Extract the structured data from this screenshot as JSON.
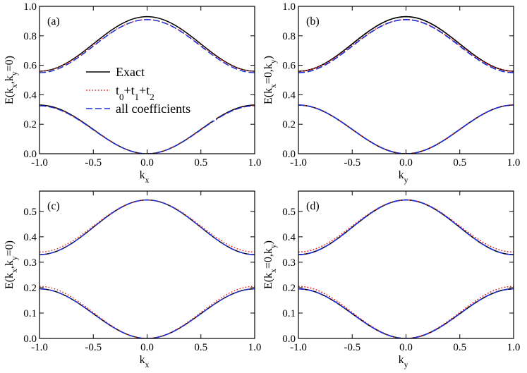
{
  "chart_data": [
    {
      "type": "line",
      "panel_label": "(a)",
      "xlabel_main": "k",
      "xlabel_sub": "x",
      "ylabel_parts": [
        "E(k",
        "x",
        ",k",
        "y",
        "=0)"
      ],
      "xlim": [
        -1.0,
        1.0
      ],
      "ylim": [
        0.0,
        1.0
      ],
      "xticks": [
        "-1.0",
        "-0.5",
        "0.0",
        "0.5",
        "1.0"
      ],
      "yticks": [
        "0.0",
        "0.2",
        "0.4",
        "0.6",
        "0.8",
        "1.0"
      ],
      "ytick_values": [
        0,
        0.2,
        0.4,
        0.6,
        0.8,
        1.0
      ],
      "has_legend": true,
      "series": [
        {
          "name": "Exact",
          "style": "solid",
          "color": "#000000",
          "curves": [
            {
              "form": "cos",
              "center": 0.745,
              "amp": 0.185
            },
            {
              "form": "sin2",
              "base": 0.0,
              "amp": 0.33
            }
          ]
        },
        {
          "name": "t0+t1+t2",
          "style": "dotted",
          "color": "#e8211a",
          "curves": [
            {
              "form": "cos",
              "center": 0.735,
              "amp": 0.175
            },
            {
              "form": "sin2",
              "base": 0.0,
              "amp": 0.325
            }
          ]
        },
        {
          "name": "all coefficients",
          "style": "dashed",
          "color": "#1f2fd6",
          "curves": [
            {
              "form": "cos",
              "center": 0.73,
              "amp": 0.18
            },
            {
              "form": "sin2",
              "base": 0.0,
              "amp": 0.325
            }
          ]
        }
      ]
    },
    {
      "type": "line",
      "panel_label": "(b)",
      "xlabel_main": "k",
      "xlabel_sub": "y",
      "ylabel_parts": [
        "E(k",
        "x",
        "=0,k",
        "y",
        ")"
      ],
      "xlim": [
        -1.0,
        1.0
      ],
      "ylim": [
        0.0,
        1.0
      ],
      "xticks": [
        "-1.0",
        "-0.5",
        "0.0",
        "0.5",
        "1.0"
      ],
      "yticks": [
        "0.0",
        "0.2",
        "0.4",
        "0.6",
        "0.8",
        "1.0"
      ],
      "ytick_values": [
        0,
        0.2,
        0.4,
        0.6,
        0.8,
        1.0
      ],
      "has_legend": false,
      "series": [
        {
          "name": "Exact",
          "style": "solid",
          "color": "#000000",
          "curves": [
            {
              "form": "cos",
              "center": 0.745,
              "amp": 0.185
            },
            {
              "form": "cos",
              "center": 0.165,
              "amp": -0.165
            },
            {
              "form": "cosd",
              "center": 0.745,
              "amp": 0.185
            },
            {
              "form": "cosd",
              "center": 0.165,
              "amp": -0.165
            }
          ]
        },
        {
          "name": "t0+t1+t2",
          "style": "dotted",
          "color": "#e8211a",
          "curves": [
            {
              "form": "cos",
              "center": 0.735,
              "amp": 0.175
            },
            {
              "form": "cos",
              "center": 0.165,
              "amp": -0.165
            },
            {
              "form": "cosd",
              "center": 0.735,
              "amp": 0.175
            },
            {
              "form": "cosd",
              "center": 0.165,
              "amp": -0.165
            }
          ]
        },
        {
          "name": "all coefficients",
          "style": "dashed",
          "color": "#1f2fd6",
          "curves": [
            {
              "form": "cos",
              "center": 0.73,
              "amp": 0.18
            },
            {
              "form": "cos",
              "center": 0.165,
              "amp": -0.165
            },
            {
              "form": "cosd",
              "center": 0.73,
              "amp": 0.18
            },
            {
              "form": "cosd",
              "center": 0.165,
              "amp": -0.165
            }
          ]
        }
      ]
    },
    {
      "type": "line",
      "panel_label": "(c)",
      "xlabel_main": "k",
      "xlabel_sub": "x",
      "ylabel_parts": [
        "E(k",
        "x",
        ",k",
        "y",
        "=0)"
      ],
      "xlim": [
        -1.0,
        1.0
      ],
      "ylim": [
        0.0,
        0.58
      ],
      "xticks": [
        "-1.0",
        "-0.5",
        "0.0",
        "0.5",
        "1.0"
      ],
      "yticks": [
        "0.0",
        "0.1",
        "0.2",
        "0.3",
        "0.4",
        "0.5"
      ],
      "ytick_values": [
        0,
        0.1,
        0.2,
        0.3,
        0.4,
        0.5
      ],
      "has_legend": false,
      "series": [
        {
          "name": "Exact",
          "style": "solid",
          "color": "#000000",
          "curves": [
            {
              "form": "cos",
              "center": 0.4375,
              "amp": 0.1075
            },
            {
              "form": "sin2",
              "base": 0.0,
              "amp": 0.195
            }
          ]
        },
        {
          "name": "t0+t1+t2",
          "style": "dotted",
          "color": "#e8211a",
          "curves": [
            {
              "form": "cos",
              "center": 0.4425,
              "amp": 0.1025
            },
            {
              "form": "sin2",
              "base": 0.0,
              "amp": 0.205
            }
          ]
        },
        {
          "name": "all coefficients",
          "style": "dashed",
          "color": "#1f2fd6",
          "curves": [
            {
              "form": "cos",
              "center": 0.4375,
              "amp": 0.1075
            },
            {
              "form": "sin2",
              "base": 0.0,
              "amp": 0.195
            }
          ]
        }
      ]
    },
    {
      "type": "line",
      "panel_label": "(d)",
      "xlabel_main": "k",
      "xlabel_sub": "y",
      "ylabel_parts": [
        "E(k",
        "x",
        "=0,k",
        "y",
        ")"
      ],
      "xlim": [
        -1.0,
        1.0
      ],
      "ylim": [
        0.0,
        0.58
      ],
      "xticks": [
        "-1.0",
        "-0.5",
        "0.0",
        "0.5",
        "1.0"
      ],
      "yticks": [
        "0.0",
        "0.1",
        "0.2",
        "0.3",
        "0.4",
        "0.5"
      ],
      "ytick_values": [
        0,
        0.1,
        0.2,
        0.3,
        0.4,
        0.5
      ],
      "has_legend": false,
      "series": [
        {
          "name": "Exact",
          "style": "solid",
          "color": "#000000",
          "curves": [
            {
              "form": "cos",
              "center": 0.4375,
              "amp": 0.1075
            },
            {
              "form": "cos",
              "center": 0.0975,
              "amp": -0.0975
            },
            {
              "form": "cosd",
              "center": 0.4375,
              "amp": 0.1075
            },
            {
              "form": "cosd",
              "center": 0.0975,
              "amp": -0.0975
            }
          ]
        },
        {
          "name": "t0+t1+t2",
          "style": "dotted",
          "color": "#e8211a",
          "curves": [
            {
              "form": "cos",
              "center": 0.4425,
              "amp": 0.1025
            },
            {
              "form": "cos",
              "center": 0.1025,
              "amp": -0.1025
            },
            {
              "form": "cosd",
              "center": 0.4425,
              "amp": 0.1025
            },
            {
              "form": "cosd",
              "center": 0.1025,
              "amp": -0.1025
            }
          ]
        },
        {
          "name": "all coefficients",
          "style": "dashed",
          "color": "#1f2fd6",
          "curves": [
            {
              "form": "cos",
              "center": 0.4375,
              "amp": 0.1075
            },
            {
              "form": "cos",
              "center": 0.0975,
              "amp": -0.0975
            },
            {
              "form": "cosd",
              "center": 0.4375,
              "amp": 0.1075
            },
            {
              "form": "cosd",
              "center": 0.0975,
              "amp": -0.0975
            }
          ]
        }
      ]
    }
  ],
  "legend": {
    "entries": [
      {
        "parts": [
          {
            "t": "Exact",
            "sub": false
          }
        ],
        "style": "solid",
        "color": "#000000"
      },
      {
        "parts": [
          {
            "t": "t",
            "sub": false
          },
          {
            "t": "0",
            "sub": true
          },
          {
            "t": "+t",
            "sub": false
          },
          {
            "t": "1",
            "sub": true
          },
          {
            "t": "+t",
            "sub": false
          },
          {
            "t": "2",
            "sub": true
          }
        ],
        "style": "dotted",
        "color": "#e8211a"
      },
      {
        "parts": [
          {
            "t": "all coefficients",
            "sub": false
          }
        ],
        "style": "dashed",
        "color": "#1f2fd6"
      }
    ]
  }
}
